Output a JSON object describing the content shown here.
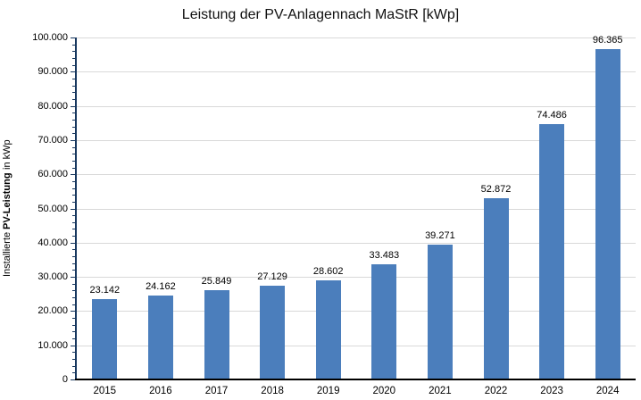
{
  "chart_data": {
    "type": "bar",
    "title": "Leistung der PV-Anlagennach MaStR [kWp]",
    "ylabel": "Installierte PV-Leistung in kWp",
    "ylabel_prefix": "Installierte ",
    "ylabel_bold": "PV-Leistung",
    "ylabel_suffix": " in kWp",
    "xlabel": "",
    "categories": [
      "2015",
      "2016",
      "2017",
      "2018",
      "2019",
      "2020",
      "2021",
      "2022",
      "2023",
      "2024"
    ],
    "values": [
      23142,
      24162,
      25849,
      27129,
      28602,
      33483,
      39271,
      52872,
      74486,
      96365
    ],
    "value_labels": [
      "23.142",
      "24.162",
      "25.849",
      "27.129",
      "28.602",
      "33.483",
      "39.271",
      "52.872",
      "74.486",
      "96.365"
    ],
    "ylim": [
      0,
      100000
    ],
    "ymajor_step": 10000,
    "yminor_step": 2000,
    "ytick_labels": [
      "0",
      "10.000",
      "20.000",
      "30.000",
      "40.000",
      "50.000",
      "60.000",
      "70.000",
      "80.000",
      "90.000",
      "100.000"
    ],
    "grid": "horizontal-major-only",
    "legend": "none",
    "colors": {
      "bar": "#4B7EBC",
      "grid": "#D9D9D9",
      "y_axis": "#17375E",
      "x_axis": "#000000",
      "text": "#000000",
      "background": "#FFFFFF"
    }
  }
}
